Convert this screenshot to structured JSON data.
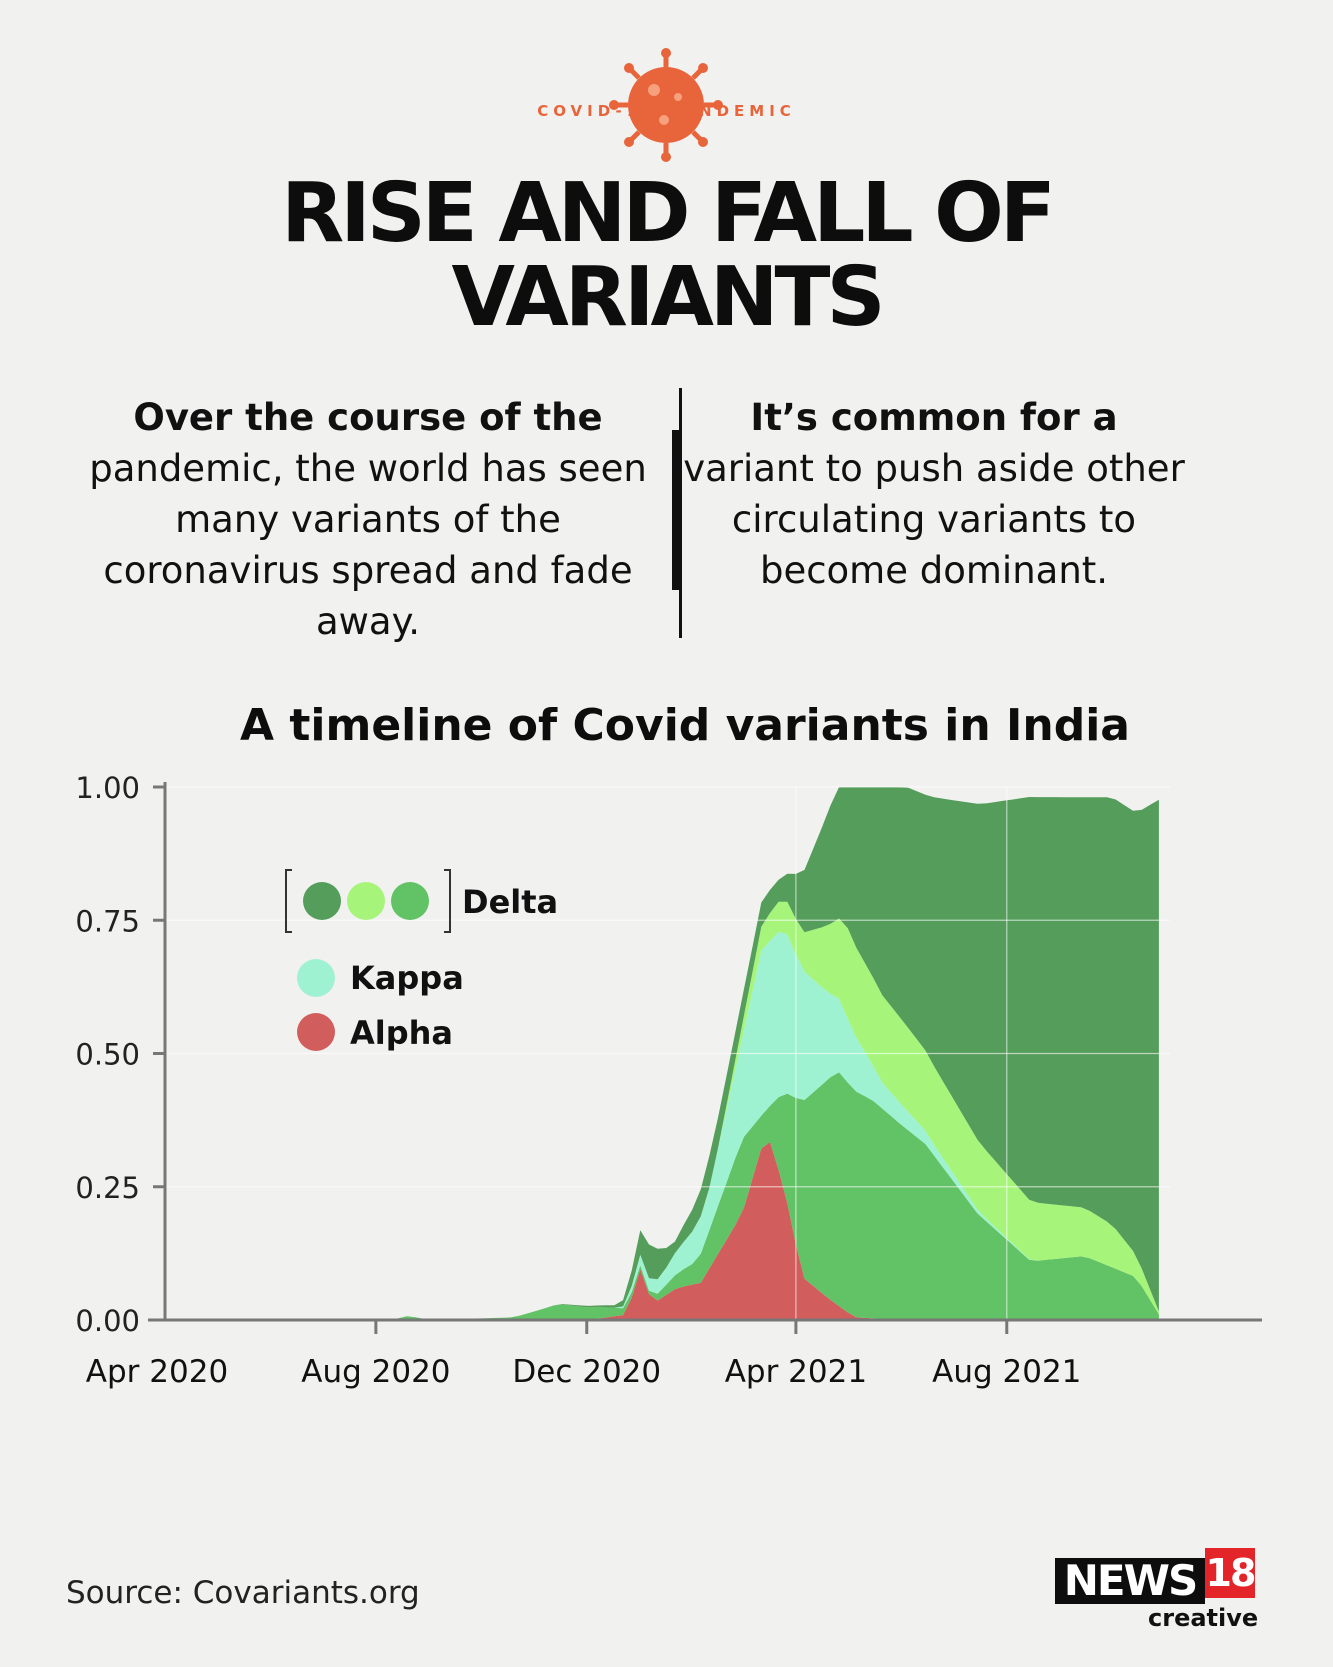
{
  "header": {
    "badge_text": "COVID-19 PANDEMIC",
    "badge_icon": "virus-icon",
    "badge_color": "#e8643a",
    "title_line1": "RISE AND FALL OF",
    "title_line2": "VARIANTS"
  },
  "intro": {
    "left_bold": "Over the course of the",
    "left_rest": "pandemic, the world has seen many variants of the coronavirus spread and fade away.",
    "right_bold": "It’s common for a",
    "right_rest": "variant to push aside other circulating variants to become dominant."
  },
  "chart_data": {
    "type": "area",
    "title": "A timeline of Covid variants in India",
    "x_ticks": [
      "Apr 2020",
      "Aug 2020",
      "Dec 2020",
      "Apr 2021",
      "Aug 2021"
    ],
    "y_ticks": [
      "0.00",
      "0.25",
      "0.50",
      "0.75",
      "1.00"
    ],
    "ylim": [
      0,
      1
    ],
    "xlim": [
      "2020-04",
      "2021-11"
    ],
    "grid": true,
    "legend_position": "top-left",
    "legend": [
      {
        "label": "Delta",
        "colors": [
          "#559d5a",
          "#a6f57a",
          "#62c266"
        ]
      },
      {
        "label": "Kappa",
        "colors": [
          "#9ff2d1"
        ]
      },
      {
        "label": "Alpha",
        "colors": [
          "#d25d5d"
        ]
      }
    ],
    "series": [
      {
        "name": "Alpha",
        "color": "#d25d5d",
        "points": [
          [
            "2020-12-01",
            0.0
          ],
          [
            "2020-12-24",
            0.01
          ],
          [
            "2021-01-01",
            0.095
          ],
          [
            "2021-01-08",
            0.03
          ],
          [
            "2021-01-22",
            0.06
          ],
          [
            "2021-02-05",
            0.07
          ],
          [
            "2021-03-01",
            0.2
          ],
          [
            "2021-03-15",
            0.355
          ],
          [
            "2021-03-25",
            0.25
          ],
          [
            "2021-04-05",
            0.08
          ],
          [
            "2021-04-20",
            0.04
          ],
          [
            "2021-05-05",
            0.005
          ],
          [
            "2021-06-01",
            0.0
          ]
        ]
      },
      {
        "name": "Delta (B.1.617.2)",
        "color": "#62c266",
        "points": [
          [
            "2020-08-10",
            0.0
          ],
          [
            "2020-08-20",
            0.008
          ],
          [
            "2020-09-01",
            0.0
          ],
          [
            "2020-10-20",
            0.005
          ],
          [
            "2020-11-15",
            0.03
          ],
          [
            "2020-12-10",
            0.02
          ],
          [
            "2021-01-05",
            0.005
          ],
          [
            "2021-02-01",
            0.04
          ],
          [
            "2021-03-01",
            0.14
          ],
          [
            "2021-03-15",
            0.04
          ],
          [
            "2021-04-05",
            0.33
          ],
          [
            "2021-04-25",
            0.44
          ],
          [
            "2021-05-15",
            0.41
          ],
          [
            "2021-06-15",
            0.33
          ],
          [
            "2021-07-15",
            0.2
          ],
          [
            "2021-08-15",
            0.11
          ],
          [
            "2021-09-15",
            0.12
          ],
          [
            "2021-10-15",
            0.08
          ],
          [
            "2021-10-30",
            0.0
          ]
        ]
      },
      {
        "name": "Kappa",
        "color": "#9ff2d1",
        "points": [
          [
            "2020-12-20",
            0.0
          ],
          [
            "2021-01-01",
            0.02
          ],
          [
            "2021-01-15",
            0.03
          ],
          [
            "2021-02-10",
            0.08
          ],
          [
            "2021-03-01",
            0.19
          ],
          [
            "2021-03-12",
            0.31
          ],
          [
            "2021-03-25",
            0.31
          ],
          [
            "2021-04-20",
            0.16
          ],
          [
            "2021-05-20",
            0.05
          ],
          [
            "2021-06-20",
            0.02
          ],
          [
            "2021-07-20",
            0.005
          ],
          [
            "2021-08-20",
            0.0
          ]
        ]
      },
      {
        "name": "Delta (AY.x)",
        "color": "#a6f57a",
        "points": [
          [
            "2021-01-01",
            0.0
          ],
          [
            "2021-02-15",
            0.0
          ],
          [
            "2021-03-15",
            0.05
          ],
          [
            "2021-04-05",
            0.07
          ],
          [
            "2021-05-01",
            0.17
          ],
          [
            "2021-06-01",
            0.16
          ],
          [
            "2021-07-01",
            0.14
          ],
          [
            "2021-08-01",
            0.12
          ],
          [
            "2021-09-01",
            0.1
          ],
          [
            "2021-10-01",
            0.08
          ],
          [
            "2021-10-30",
            0.0
          ]
        ]
      },
      {
        "name": "Delta",
        "color": "#559d5a",
        "points": [
          [
            "2020-11-10",
            0.0
          ],
          [
            "2020-12-20",
            0.005
          ],
          [
            "2021-01-08",
            0.07
          ],
          [
            "2021-01-20",
            0.02
          ],
          [
            "2021-02-10",
            0.06
          ],
          [
            "2021-03-01",
            0.05
          ],
          [
            "2021-03-25",
            0.04
          ],
          [
            "2021-04-05",
            0.11
          ],
          [
            "2021-04-25",
            0.25
          ],
          [
            "2021-05-15",
            0.39
          ],
          [
            "2021-06-15",
            0.48
          ],
          [
            "2021-07-15",
            0.63
          ],
          [
            "2021-08-15",
            0.76
          ],
          [
            "2021-09-15",
            0.77
          ],
          [
            "2021-10-15",
            0.83
          ],
          [
            "2021-11-01",
            1.0
          ]
        ]
      }
    ]
  },
  "footer": {
    "source": "Source: Covariants.org",
    "logo_word": "NEWS",
    "logo_number": "18",
    "logo_sub": "creative"
  }
}
